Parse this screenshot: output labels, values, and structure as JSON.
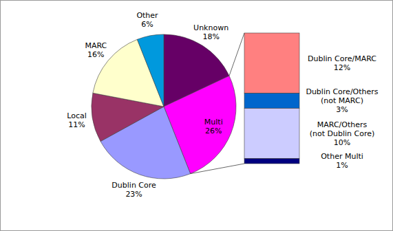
{
  "chart_data": {
    "type": "pie",
    "categories": [
      "Unknown",
      "Multi",
      "Dublin Core",
      "Local",
      "MARC",
      "Other"
    ],
    "values": [
      18,
      26,
      23,
      11,
      16,
      6
    ],
    "value_labels": [
      "18%",
      "26%",
      "23%",
      "11%",
      "16%",
      "6%"
    ],
    "colors": [
      "#660066",
      "#ff00ff",
      "#9999ff",
      "#993366",
      "#ffffcc",
      "#0099dd"
    ],
    "data_labels": true,
    "breakdown": {
      "parent": "Multi",
      "categories": [
        "Dublin Core/MARC",
        "Dublin Core/Others (not MARC)",
        "MARC/Others (not Dublin Core)",
        "Other Multi"
      ],
      "values": [
        12,
        3,
        10,
        1
      ],
      "value_labels": [
        "12%",
        "3%",
        "10%",
        "1%"
      ],
      "colors": [
        "#ff8080",
        "#0066cc",
        "#ccccff",
        "#000080"
      ]
    }
  }
}
